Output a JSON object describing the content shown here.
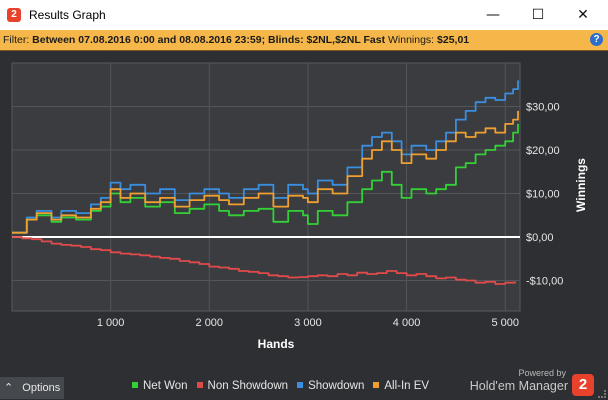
{
  "window": {
    "app_icon_glyph": "2",
    "title": "Results Graph",
    "minimize_glyph": "—",
    "maximize_glyph": "☐",
    "close_glyph": "✕"
  },
  "filter": {
    "label": "Filter:",
    "criteria": "Between 07.08.2016 0:00 and 08.08.2016 23:59; Blinds: $2NL,$2NL Fast",
    "winnings_label": "Winnings:",
    "winnings_value": "$25,01",
    "help_glyph": "?"
  },
  "chart_data": {
    "type": "line",
    "xlabel": "Hands",
    "ylabel": "Winnings",
    "xlim": [
      0,
      5150
    ],
    "ylim": [
      -17,
      40
    ],
    "x_ticks": [
      1000,
      2000,
      3000,
      4000,
      5000
    ],
    "x_tick_labels": [
      "1 000",
      "2 000",
      "3 000",
      "4 000",
      "5 000"
    ],
    "y_ticks": [
      30,
      20,
      10,
      0,
      -10
    ],
    "y_tick_labels": [
      "$30,00",
      "$20,00",
      "$10,00",
      "$0,00",
      "-$10,00"
    ],
    "grid": true,
    "legend_position": "bottom",
    "series": [
      {
        "name": "Net Won",
        "color": "#33d136",
        "x": [
          0,
          150,
          250,
          400,
          500,
          650,
          800,
          900,
          1000,
          1100,
          1200,
          1350,
          1500,
          1650,
          1800,
          1950,
          2100,
          2200,
          2350,
          2500,
          2650,
          2800,
          2950,
          3000,
          3100,
          3250,
          3400,
          3550,
          3650,
          3750,
          3850,
          3950,
          4050,
          4200,
          4300,
          4400,
          4500,
          4600,
          4700,
          4800,
          4900,
          5000,
          5080,
          5130
        ],
        "y": [
          1,
          4,
          5,
          3.5,
          4.5,
          4,
          6,
          7,
          10,
          8,
          9,
          7,
          8,
          5.5,
          6.5,
          7.5,
          6,
          5,
          6,
          6.5,
          3.5,
          6,
          5,
          3,
          6,
          5,
          8,
          11,
          13,
          15,
          12,
          9,
          11,
          10,
          11,
          12,
          16,
          17,
          19,
          20,
          21,
          22,
          24,
          26
        ]
      },
      {
        "name": "Non Showdown",
        "color": "#e04a4a",
        "x": [
          0,
          100,
          200,
          300,
          400,
          500,
          600,
          700,
          800,
          900,
          1000,
          1100,
          1200,
          1300,
          1400,
          1500,
          1600,
          1700,
          1800,
          1900,
          2000,
          2100,
          2200,
          2300,
          2400,
          2500,
          2600,
          2700,
          2800,
          2900,
          3000,
          3100,
          3200,
          3300,
          3400,
          3500,
          3600,
          3700,
          3800,
          3900,
          4000,
          4100,
          4200,
          4300,
          4400,
          4500,
          4600,
          4700,
          4800,
          4900,
          5000,
          5100
        ],
        "y": [
          0,
          -0.3,
          -0.5,
          -1,
          -1.5,
          -1.8,
          -2,
          -2.3,
          -2.8,
          -3,
          -3.5,
          -3.8,
          -4,
          -4.2,
          -4.5,
          -4.8,
          -5,
          -5.5,
          -5.8,
          -6.2,
          -6.8,
          -7,
          -7.3,
          -7.8,
          -8,
          -8.3,
          -8.8,
          -9,
          -9.3,
          -9.2,
          -9,
          -8.8,
          -9,
          -8.5,
          -8.8,
          -8.2,
          -8.5,
          -8.3,
          -7.8,
          -8.3,
          -8.8,
          -8.5,
          -9,
          -9.5,
          -9.3,
          -9.8,
          -10,
          -10.5,
          -10.3,
          -10.8,
          -10.5,
          -10.2
        ]
      },
      {
        "name": "Showdown",
        "color": "#3a8ee0",
        "x": [
          0,
          150,
          250,
          400,
          500,
          650,
          800,
          900,
          1000,
          1100,
          1200,
          1350,
          1500,
          1650,
          1800,
          1950,
          2100,
          2200,
          2350,
          2500,
          2650,
          2800,
          2950,
          3000,
          3100,
          3250,
          3400,
          3550,
          3650,
          3750,
          3850,
          3950,
          4050,
          4200,
          4300,
          4400,
          4500,
          4600,
          4700,
          4800,
          4900,
          5000,
          5080,
          5130
        ],
        "y": [
          1,
          4.5,
          6,
          4.5,
          6,
          5.5,
          7.5,
          9,
          12.5,
          11,
          12,
          10,
          11,
          8.5,
          10,
          11,
          10,
          9,
          11,
          12,
          9,
          12,
          11,
          10,
          13,
          12,
          16,
          21,
          23,
          24,
          22,
          19,
          21,
          20,
          22,
          24,
          27,
          29,
          31,
          32,
          31.5,
          33,
          34,
          36
        ]
      },
      {
        "name": "All-In EV",
        "color": "#f0a030",
        "x": [
          0,
          150,
          250,
          400,
          500,
          650,
          800,
          900,
          1000,
          1100,
          1200,
          1350,
          1500,
          1650,
          1800,
          1950,
          2100,
          2200,
          2350,
          2500,
          2650,
          2800,
          2950,
          3000,
          3100,
          3250,
          3400,
          3550,
          3650,
          3750,
          3850,
          3950,
          4050,
          4200,
          4300,
          4400,
          4500,
          4600,
          4700,
          4800,
          4900,
          5000,
          5080,
          5130
        ],
        "y": [
          1,
          4,
          5.5,
          4,
          5,
          4.5,
          6.5,
          8,
          11,
          9,
          10,
          8,
          9,
          7,
          8.5,
          9.5,
          8.5,
          7.5,
          9,
          10,
          7,
          9.5,
          9,
          8,
          11,
          10,
          14,
          18,
          20,
          22,
          20,
          17,
          19,
          18,
          20,
          22,
          24,
          23,
          24,
          25,
          24,
          26,
          27,
          29
        ]
      }
    ]
  },
  "footer": {
    "options_label": "Options",
    "options_glyph": "⌃",
    "powered_by": "Powered by",
    "brand": "Hold'em Manager",
    "brand_logo_glyph": "2"
  }
}
